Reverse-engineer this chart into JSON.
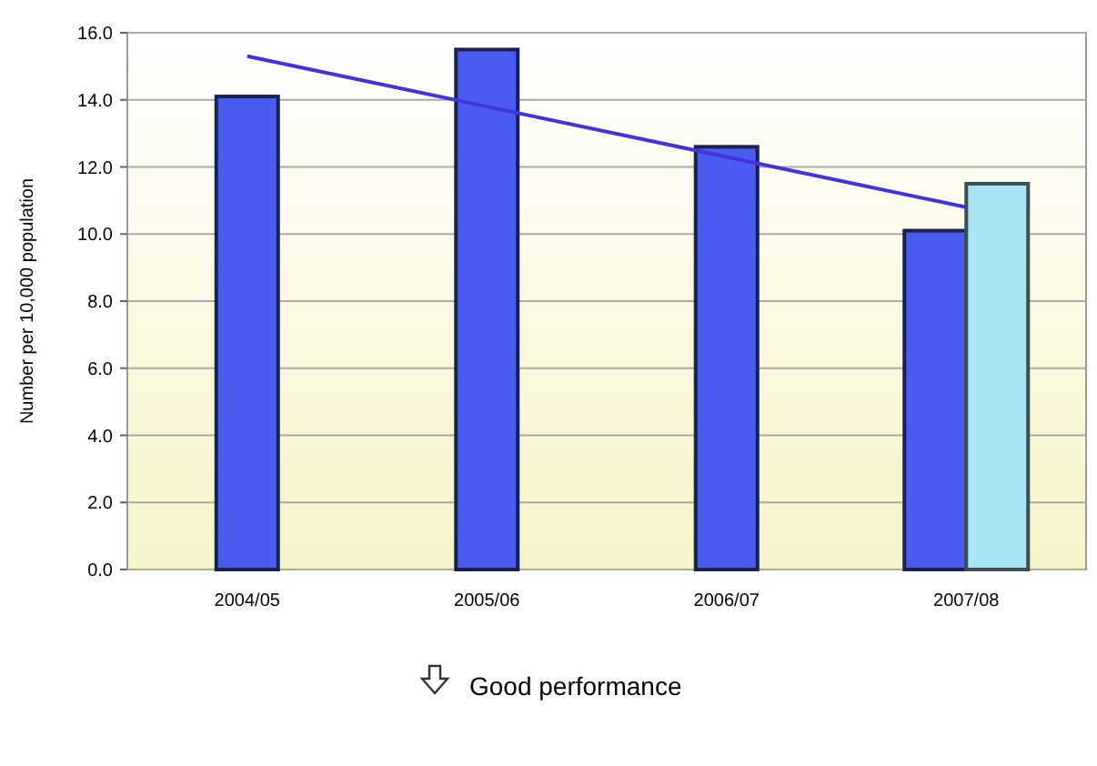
{
  "chart_data": {
    "type": "bar",
    "ylabel": "Number per 10,000 population",
    "categories": [
      "2004/05",
      "2005/06",
      "2006/07",
      "2007/08"
    ],
    "series": [
      {
        "color": "#4a5cf0",
        "values": [
          14.1,
          15.5,
          12.6,
          10.1
        ]
      },
      {
        "color": "#a8e4f2",
        "values": [
          null,
          null,
          null,
          11.5
        ]
      },
      {
        "type": "line",
        "color": "#4433dd",
        "values": [
          15.3,
          13.8,
          12.3,
          10.8
        ]
      }
    ],
    "ylim": [
      0,
      16
    ],
    "yticks": [
      {
        "value": 0,
        "label": "0.0"
      },
      {
        "value": 2,
        "label": "2.0"
      },
      {
        "value": 4,
        "label": "4.0"
      },
      {
        "value": 6,
        "label": "6.0"
      },
      {
        "value": 8,
        "label": "8.0"
      },
      {
        "value": 10,
        "label": "10.0"
      },
      {
        "value": 12,
        "label": "12.0"
      },
      {
        "value": 14,
        "label": "14.0"
      },
      {
        "value": 16,
        "label": "16.0"
      }
    ],
    "grid": "y",
    "annotations": [
      "Good performance"
    ]
  }
}
